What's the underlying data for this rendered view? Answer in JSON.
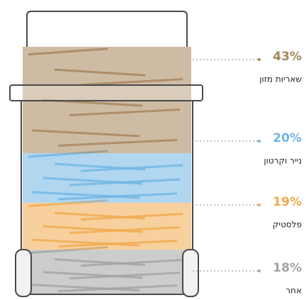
{
  "chart_data": {
    "type": "stacked-bin",
    "categories": [
      "שאריות מזון",
      "נייר וקרטון",
      "פלסטיק",
      "אחר"
    ],
    "values": [
      43,
      20,
      19,
      18
    ],
    "value_labels": [
      "43%",
      "20%",
      "19%",
      "18%"
    ],
    "colors": [
      "#a6845a",
      "#6fb5e3",
      "#f0a94e",
      "#a3a3a3"
    ]
  }
}
